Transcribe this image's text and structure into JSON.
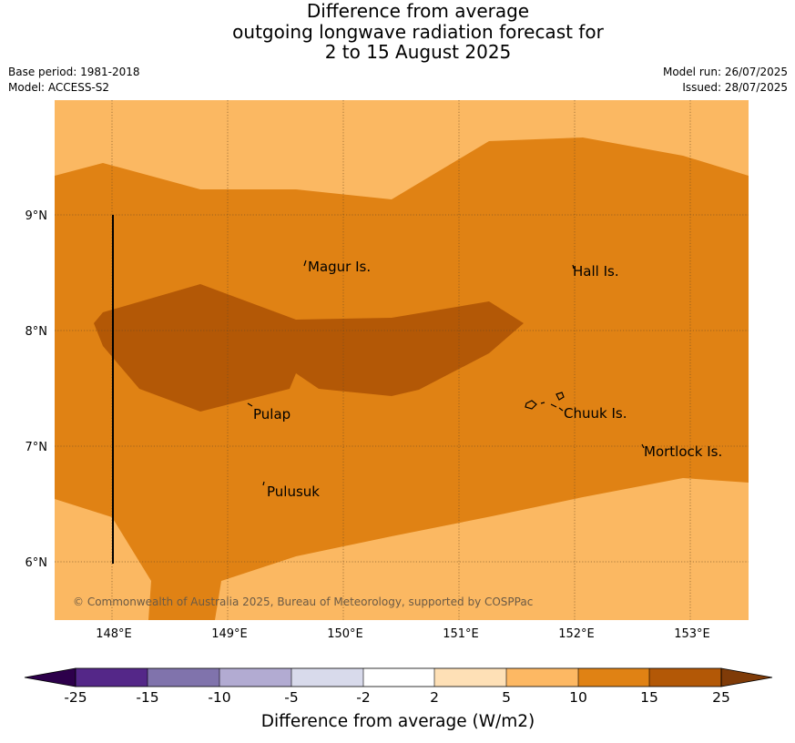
{
  "title": {
    "line1": "Difference from average",
    "line2": "outgoing longwave radiation forecast for",
    "line3": "2 to 15 August 2025"
  },
  "meta": {
    "base_period": "Base period: 1981-2018",
    "model": "Model: ACCESS-S2",
    "model_run": "Model run: 26/07/2025",
    "issued": "Issued: 28/07/2025"
  },
  "map": {
    "lon_ticks": [
      "148°E",
      "149°E",
      "150°E",
      "151°E",
      "152°E",
      "153°E"
    ],
    "lat_ticks": [
      "9°N",
      "8°N",
      "7°N",
      "6°N"
    ],
    "places": {
      "magur": "Magur Is.",
      "hall": "Hall Is.",
      "pulap": "Pulap",
      "chuuk": "Chuuk Is.",
      "pulusuk": "Pulusuk",
      "mortlock": "Mortlock Is."
    },
    "copyright": "© Commonwealth of Australia 2025, Bureau of Meteorology, supported by COSPPac",
    "colors": {
      "band_5_10": "#fbb862",
      "band_10_15": "#e08214",
      "band_15_25": "#b35806"
    }
  },
  "colorbar": {
    "title": "Difference from average (W/m2)",
    "labels": [
      "-25",
      "-15",
      "-10",
      "-5",
      "-2",
      "2",
      "5",
      "10",
      "15",
      "25"
    ],
    "colors": [
      "#2d004b",
      "#542788",
      "#8073ac",
      "#b2abd2",
      "#d8daeb",
      "#ffffff",
      "#fee0b6",
      "#fdb863",
      "#e08214",
      "#b35806",
      "#7f3b08"
    ]
  }
}
